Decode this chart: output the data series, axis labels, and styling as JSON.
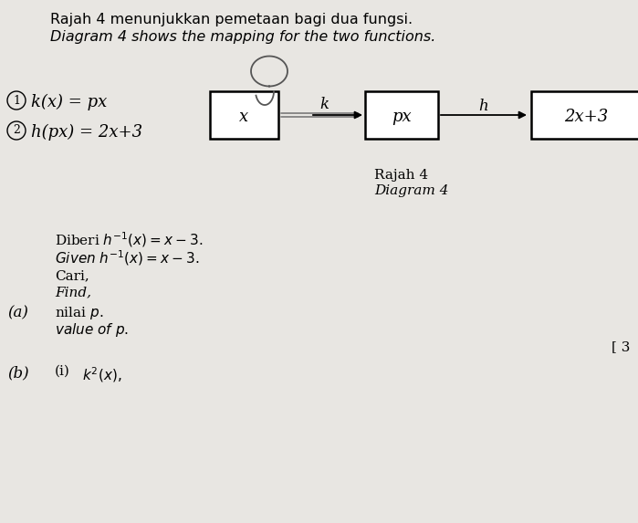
{
  "bg_color": "#e8e6e2",
  "title_line1": "Rajah 4 menunjukkan pemetaan bagi dua fungsi.",
  "title_line2": "Diagram 4 shows the mapping for the two functions.",
  "box1_label": "x",
  "box2_label": "px",
  "box3_label": "2x+3",
  "arrow1_label": "k",
  "arrow2_label": "h",
  "caption1": "Rajah 4",
  "caption2": "Diagram 4",
  "bracket": "[ 3"
}
